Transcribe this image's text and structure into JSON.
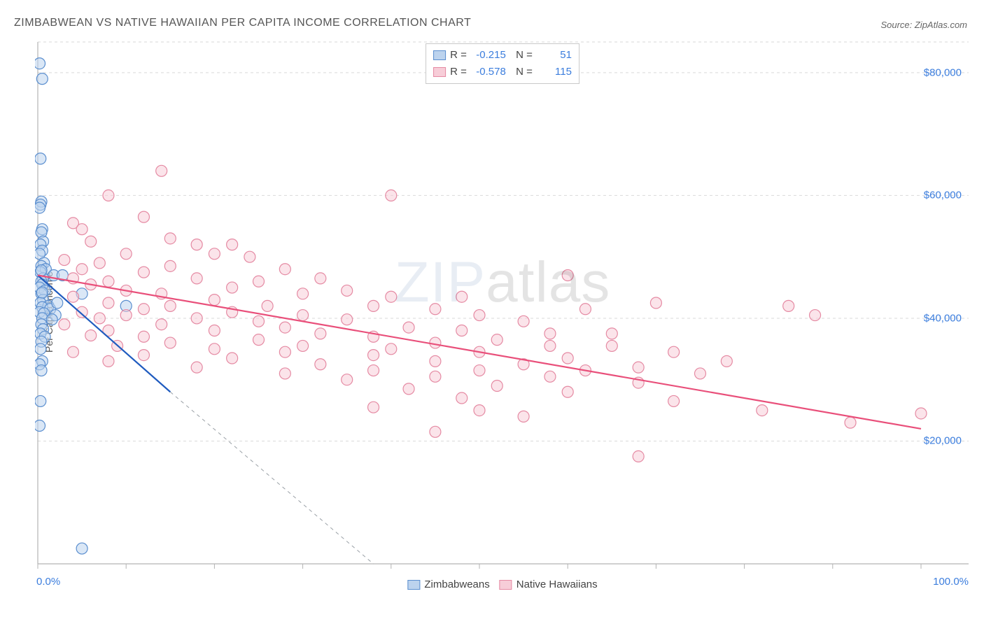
{
  "title": "ZIMBABWEAN VS NATIVE HAWAIIAN PER CAPITA INCOME CORRELATION CHART",
  "source": "Source: ZipAtlas.com",
  "ylabel": "Per Capita Income",
  "watermark": {
    "zip": "ZIP",
    "atlas": "atlas"
  },
  "chart": {
    "type": "scatter",
    "xlim": [
      0,
      100
    ],
    "ylim": [
      0,
      85000
    ],
    "x_axis_min_label": "0.0%",
    "x_axis_max_label": "100.0%",
    "y_tick_values": [
      20000,
      40000,
      60000,
      80000
    ],
    "y_tick_labels": [
      "$20,000",
      "$40,000",
      "$60,000",
      "$80,000"
    ],
    "x_major_ticks": [
      0,
      10,
      20,
      30,
      40,
      50,
      60,
      70,
      80,
      90,
      100
    ],
    "background_color": "#ffffff",
    "grid_color": "#d9d9d9",
    "axis_color": "#b3b3b3",
    "marker_radius": 8,
    "marker_stroke_width": 1.2,
    "tick_label_color": "#3b7ddd",
    "tick_label_fontsize": 15,
    "title_fontsize": 16,
    "title_color": "#555555",
    "series": [
      {
        "name": "Zimbabweans",
        "fill": "#bcd3ee",
        "stroke": "#5a8ecf",
        "fill_opacity": 0.55,
        "R": "-0.215",
        "N": "51",
        "regression": {
          "x1": 0,
          "y1": 47000,
          "x2": 15,
          "y2": 28000,
          "color": "#1f5bbf",
          "width": 2.2,
          "extend_dash": {
            "x2": 38,
            "y2": 0,
            "color": "#9aa0a6",
            "dash": "5,5",
            "width": 1
          }
        },
        "points": [
          [
            0.2,
            81500
          ],
          [
            0.5,
            79000
          ],
          [
            0.3,
            66000
          ],
          [
            0.4,
            59000
          ],
          [
            0.3,
            58500
          ],
          [
            0.2,
            58000
          ],
          [
            0.5,
            54500
          ],
          [
            0.4,
            54000
          ],
          [
            0.6,
            52500
          ],
          [
            0.3,
            52000
          ],
          [
            0.5,
            51000
          ],
          [
            0.2,
            50500
          ],
          [
            0.7,
            49000
          ],
          [
            0.4,
            48500
          ],
          [
            0.9,
            48000
          ],
          [
            0.3,
            47500
          ],
          [
            1.8,
            47000
          ],
          [
            0.6,
            46500
          ],
          [
            0.4,
            46000
          ],
          [
            0.5,
            45500
          ],
          [
            0.2,
            45000
          ],
          [
            0.8,
            44500
          ],
          [
            0.4,
            44000
          ],
          [
            2.8,
            47000
          ],
          [
            0.6,
            43000
          ],
          [
            0.3,
            42500
          ],
          [
            1.2,
            42000
          ],
          [
            0.5,
            41800
          ],
          [
            1.4,
            41500
          ],
          [
            0.2,
            41000
          ],
          [
            0.7,
            40800
          ],
          [
            2.0,
            40500
          ],
          [
            0.5,
            40000
          ],
          [
            1.6,
            39800
          ],
          [
            0.4,
            39000
          ],
          [
            5.0,
            44000
          ],
          [
            0.6,
            38200
          ],
          [
            10.0,
            42000
          ],
          [
            0.3,
            37500
          ],
          [
            2.2,
            42500
          ],
          [
            0.8,
            37000
          ],
          [
            0.4,
            36200
          ],
          [
            0.3,
            35000
          ],
          [
            0.5,
            33000
          ],
          [
            0.2,
            32500
          ],
          [
            0.4,
            31500
          ],
          [
            0.3,
            26500
          ],
          [
            0.2,
            22500
          ],
          [
            0.5,
            44200
          ],
          [
            0.4,
            47800
          ],
          [
            5.0,
            2500
          ]
        ]
      },
      {
        "name": "Native Hawaiians",
        "fill": "#f7cdd8",
        "stroke": "#e58aa3",
        "fill_opacity": 0.55,
        "R": "-0.578",
        "N": "115",
        "regression": {
          "x1": 0,
          "y1": 47000,
          "x2": 100,
          "y2": 22000,
          "color": "#e94f7a",
          "width": 2.2
        },
        "points": [
          [
            14,
            64000
          ],
          [
            8,
            60000
          ],
          [
            40,
            60000
          ],
          [
            4,
            55500
          ],
          [
            12,
            56500
          ],
          [
            5,
            54500
          ],
          [
            15,
            53000
          ],
          [
            6,
            52500
          ],
          [
            18,
            52000
          ],
          [
            22,
            52000
          ],
          [
            10,
            50500
          ],
          [
            20,
            50500
          ],
          [
            3,
            49500
          ],
          [
            24,
            50000
          ],
          [
            7,
            49000
          ],
          [
            15,
            48500
          ],
          [
            5,
            48000
          ],
          [
            28,
            48000
          ],
          [
            12,
            47500
          ],
          [
            4,
            46500
          ],
          [
            18,
            46500
          ],
          [
            8,
            46000
          ],
          [
            25,
            46000
          ],
          [
            32,
            46500
          ],
          [
            6,
            45500
          ],
          [
            22,
            45000
          ],
          [
            10,
            44500
          ],
          [
            35,
            44500
          ],
          [
            14,
            44000
          ],
          [
            30,
            44000
          ],
          [
            4,
            43500
          ],
          [
            40,
            43500
          ],
          [
            20,
            43000
          ],
          [
            8,
            42500
          ],
          [
            48,
            43500
          ],
          [
            15,
            42000
          ],
          [
            26,
            42000
          ],
          [
            60,
            47000
          ],
          [
            12,
            41500
          ],
          [
            38,
            42000
          ],
          [
            5,
            41000
          ],
          [
            22,
            41000
          ],
          [
            45,
            41500
          ],
          [
            10,
            40500
          ],
          [
            30,
            40500
          ],
          [
            7,
            40000
          ],
          [
            18,
            40000
          ],
          [
            50,
            40500
          ],
          [
            25,
            39500
          ],
          [
            35,
            39800
          ],
          [
            62,
            41500
          ],
          [
            3,
            39000
          ],
          [
            14,
            39000
          ],
          [
            55,
            39500
          ],
          [
            28,
            38500
          ],
          [
            42,
            38500
          ],
          [
            8,
            38000
          ],
          [
            20,
            38000
          ],
          [
            48,
            38000
          ],
          [
            32,
            37500
          ],
          [
            58,
            37500
          ],
          [
            12,
            37000
          ],
          [
            6,
            37200
          ],
          [
            38,
            37000
          ],
          [
            65,
            37500
          ],
          [
            25,
            36500
          ],
          [
            52,
            36500
          ],
          [
            15,
            36000
          ],
          [
            45,
            36000
          ],
          [
            70,
            42500
          ],
          [
            9,
            35500
          ],
          [
            30,
            35500
          ],
          [
            58,
            35500
          ],
          [
            85,
            42000
          ],
          [
            20,
            35000
          ],
          [
            40,
            35000
          ],
          [
            65,
            35500
          ],
          [
            4,
            34500
          ],
          [
            28,
            34500
          ],
          [
            50,
            34500
          ],
          [
            12,
            34000
          ],
          [
            38,
            34000
          ],
          [
            72,
            34500
          ],
          [
            22,
            33500
          ],
          [
            60,
            33500
          ],
          [
            45,
            33000
          ],
          [
            8,
            33000
          ],
          [
            32,
            32500
          ],
          [
            78,
            33000
          ],
          [
            55,
            32500
          ],
          [
            18,
            32000
          ],
          [
            68,
            32000
          ],
          [
            38,
            31500
          ],
          [
            50,
            31500
          ],
          [
            62,
            31500
          ],
          [
            28,
            31000
          ],
          [
            75,
            31000
          ],
          [
            45,
            30500
          ],
          [
            88,
            40500
          ],
          [
            58,
            30500
          ],
          [
            35,
            30000
          ],
          [
            52,
            29000
          ],
          [
            68,
            29500
          ],
          [
            42,
            28500
          ],
          [
            60,
            28000
          ],
          [
            48,
            27000
          ],
          [
            72,
            26500
          ],
          [
            100,
            24500
          ],
          [
            38,
            25500
          ],
          [
            50,
            25000
          ],
          [
            55,
            24000
          ],
          [
            45,
            21500
          ],
          [
            68,
            17500
          ],
          [
            82,
            25000
          ],
          [
            92,
            23000
          ]
        ]
      }
    ],
    "corr_legend": {
      "border_color": "#c9c9c9",
      "label_color": "#444444",
      "value_color": "#3b7ddd"
    },
    "series_legend": {
      "label_color": "#444444",
      "fontsize": 15
    }
  }
}
